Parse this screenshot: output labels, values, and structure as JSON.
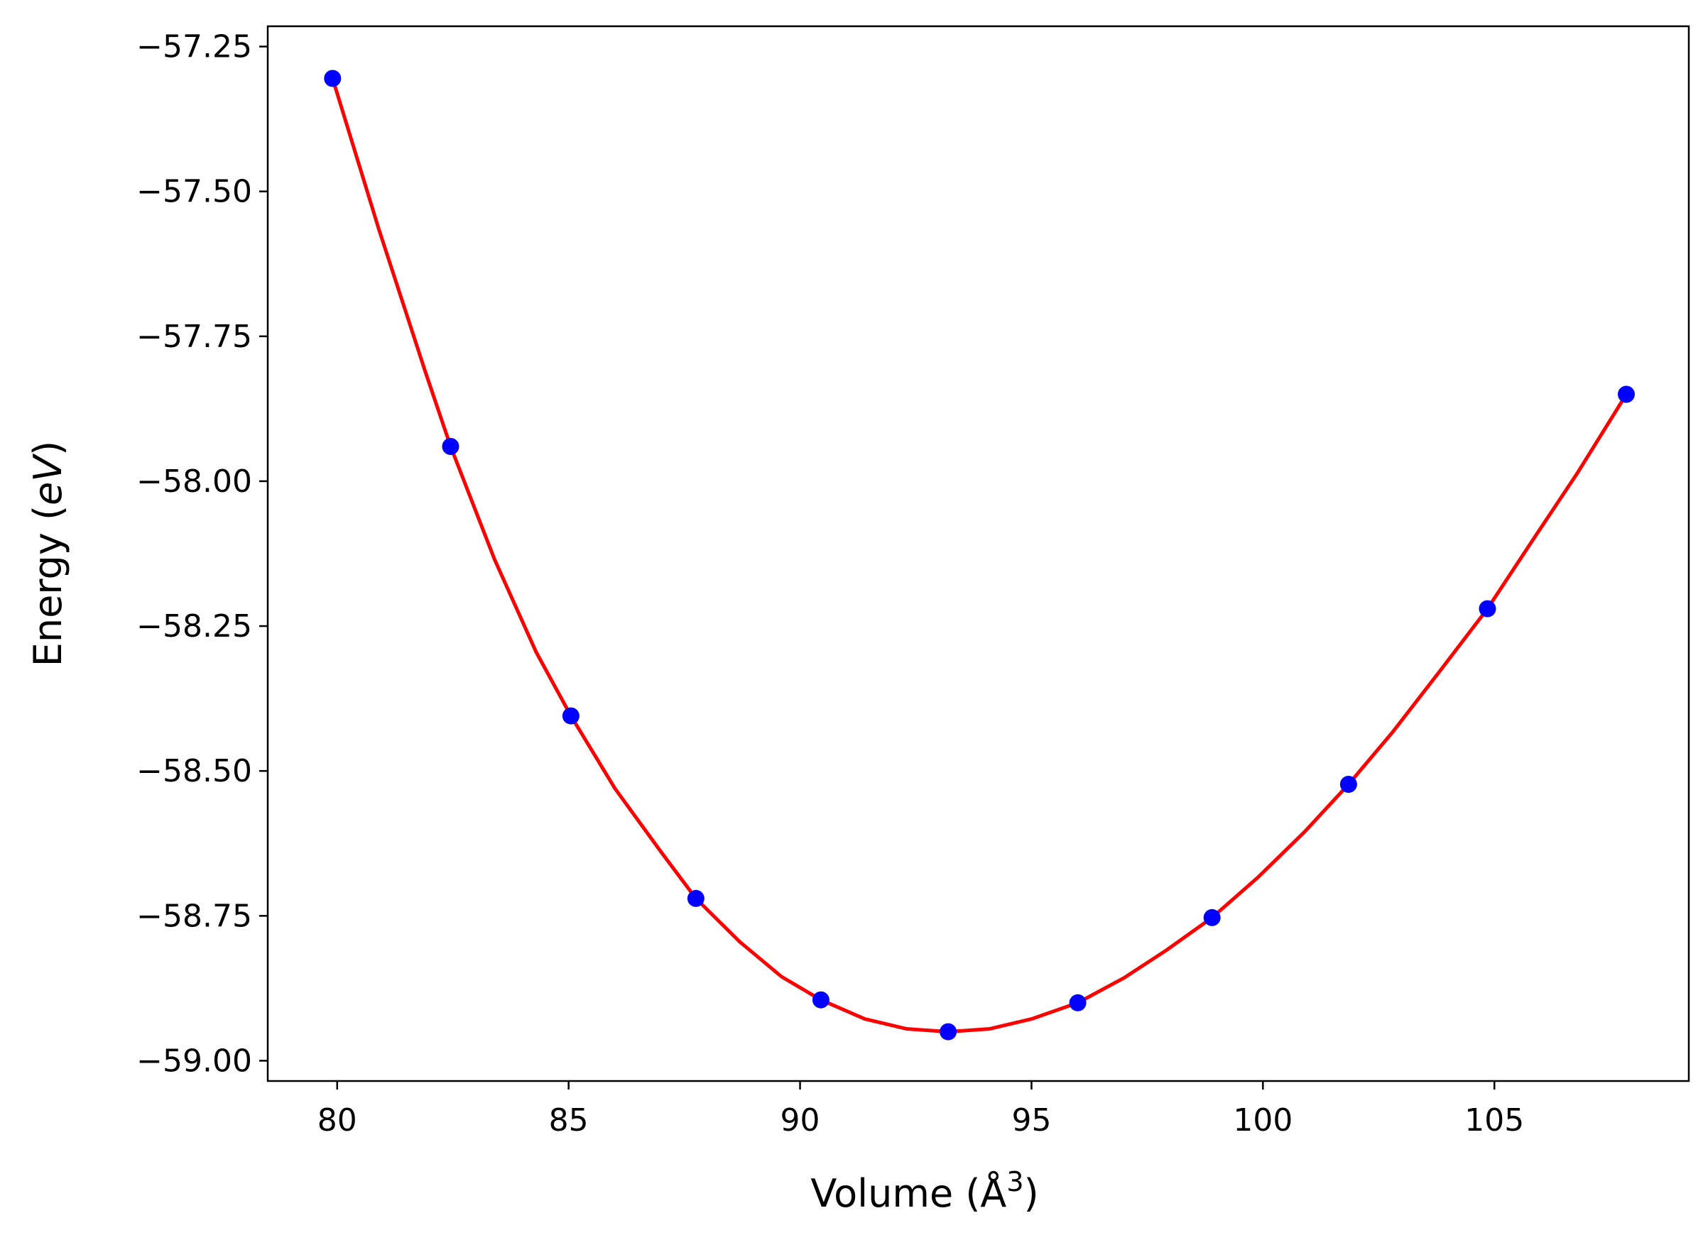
{
  "chart_data": {
    "type": "scatter",
    "title": "",
    "xlabel": "Volume (Å",
    "xlabel_sup": "3",
    "xlabel_tail": ")",
    "ylabel": "Energy (",
    "ylabel_italic": "eV",
    "ylabel_tail": ")",
    "xlim": [
      78.5,
      109.2
    ],
    "ylim": [
      -59.035,
      -57.215
    ],
    "xticks": [
      80,
      85,
      90,
      95,
      100,
      105
    ],
    "xtick_labels": [
      "80",
      "85",
      "90",
      "95",
      "100",
      "105"
    ],
    "yticks": [
      -57.25,
      -57.5,
      -57.75,
      -58.0,
      -58.25,
      -58.5,
      -58.75,
      -59.0
    ],
    "ytick_labels": [
      "−57.25",
      "−57.50",
      "−57.75",
      "−58.00",
      "−58.25",
      "−58.50",
      "−58.75",
      "−59.00"
    ],
    "grid": false,
    "series": [
      {
        "kind": "points",
        "color": "#0000ff",
        "x": [
          79.9,
          82.45,
          85.05,
          87.75,
          90.45,
          93.2,
          96.0,
          98.9,
          101.85,
          104.85,
          107.85
        ],
        "y": [
          -57.305,
          -57.94,
          -58.405,
          -58.72,
          -58.895,
          -58.95,
          -58.9,
          -58.753,
          -58.523,
          -58.22,
          -57.85
        ]
      },
      {
        "kind": "fit",
        "color": "#ff0000",
        "x": [
          79.9,
          80.9,
          81.9,
          82.45,
          83.4,
          84.3,
          85.05,
          86.0,
          87.0,
          87.75,
          88.7,
          89.6,
          90.45,
          91.4,
          92.3,
          93.2,
          94.1,
          95.0,
          96.0,
          97.0,
          97.9,
          98.9,
          99.9,
          100.9,
          101.85,
          102.8,
          103.8,
          104.85,
          105.8,
          106.8,
          107.85
        ],
        "y": [
          -57.305,
          -57.565,
          -57.81,
          -57.94,
          -58.135,
          -58.295,
          -58.405,
          -58.53,
          -58.64,
          -58.72,
          -58.795,
          -58.855,
          -58.895,
          -58.928,
          -58.945,
          -58.95,
          -58.945,
          -58.928,
          -58.9,
          -58.857,
          -58.81,
          -58.753,
          -58.683,
          -58.605,
          -58.523,
          -58.433,
          -58.33,
          -58.22,
          -58.105,
          -57.985,
          -57.85
        ]
      }
    ]
  }
}
